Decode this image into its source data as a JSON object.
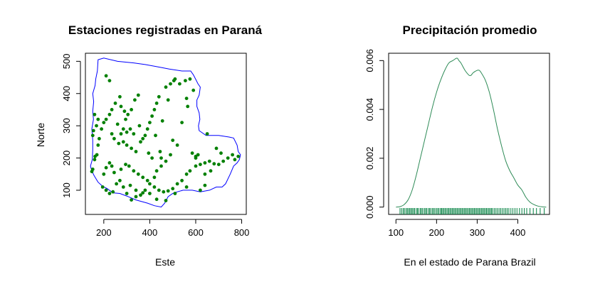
{
  "chart_data": [
    {
      "type": "scatter",
      "title": "Estaciones registradas en Paraná",
      "xlabel": "Este",
      "ylabel": "Norte",
      "xlim": [
        120,
        820
      ],
      "ylim": [
        25,
        525
      ],
      "x_ticks": [
        "200",
        "400",
        "600",
        "800"
      ],
      "y_ticks": [
        "100",
        "200",
        "300",
        "400",
        "500"
      ],
      "colors": {
        "points": "#008000",
        "border": "#0000ff"
      },
      "border_polygon": [
        [
          175,
          505
        ],
        [
          200,
          510
        ],
        [
          260,
          500
        ],
        [
          330,
          495
        ],
        [
          380,
          490
        ],
        [
          420,
          485
        ],
        [
          455,
          480
        ],
        [
          485,
          476
        ],
        [
          540,
          470
        ],
        [
          578,
          470
        ],
        [
          590,
          458
        ],
        [
          610,
          430
        ],
        [
          620,
          420
        ],
        [
          615,
          395
        ],
        [
          605,
          380
        ],
        [
          605,
          360
        ],
        [
          615,
          340
        ],
        [
          618,
          320
        ],
        [
          612,
          300
        ],
        [
          615,
          285
        ],
        [
          645,
          270
        ],
        [
          700,
          270
        ],
        [
          745,
          265
        ],
        [
          765,
          262
        ],
        [
          780,
          240
        ],
        [
          785,
          220
        ],
        [
          795,
          210
        ],
        [
          790,
          195
        ],
        [
          780,
          185
        ],
        [
          765,
          175
        ],
        [
          750,
          150
        ],
        [
          730,
          120
        ],
        [
          715,
          110
        ],
        [
          690,
          110
        ],
        [
          660,
          100
        ],
        [
          620,
          95
        ],
        [
          585,
          100
        ],
        [
          545,
          100
        ],
        [
          520,
          95
        ],
        [
          500,
          90
        ],
        [
          480,
          80
        ],
        [
          465,
          60
        ],
        [
          450,
          48
        ],
        [
          420,
          52
        ],
        [
          390,
          60
        ],
        [
          340,
          70
        ],
        [
          300,
          82
        ],
        [
          270,
          90
        ],
        [
          240,
          92
        ],
        [
          215,
          105
        ],
        [
          195,
          112
        ],
        [
          175,
          125
        ],
        [
          158,
          145
        ],
        [
          148,
          160
        ],
        [
          142,
          175
        ],
        [
          150,
          195
        ],
        [
          152,
          225
        ],
        [
          152,
          255
        ],
        [
          148,
          290
        ],
        [
          155,
          320
        ],
        [
          152,
          345
        ],
        [
          156,
          375
        ],
        [
          152,
          400
        ],
        [
          162,
          425
        ],
        [
          165,
          445
        ],
        [
          172,
          470
        ],
        [
          175,
          505
        ]
      ],
      "points": [
        [
          160,
          335
        ],
        [
          168,
          300
        ],
        [
          175,
          320
        ],
        [
          155,
          285
        ],
        [
          152,
          270
        ],
        [
          162,
          205
        ],
        [
          170,
          210
        ],
        [
          160,
          195
        ],
        [
          148,
          158
        ],
        [
          152,
          165
        ],
        [
          175,
          240
        ],
        [
          180,
          260
        ],
        [
          190,
          290
        ],
        [
          200,
          310
        ],
        [
          210,
          320
        ],
        [
          225,
          335
        ],
        [
          235,
          350
        ],
        [
          250,
          370
        ],
        [
          270,
          390
        ],
        [
          275,
          360
        ],
        [
          290,
          345
        ],
        [
          305,
          335
        ],
        [
          320,
          350
        ],
        [
          335,
          380
        ],
        [
          350,
          395
        ],
        [
          295,
          320
        ],
        [
          300,
          280
        ],
        [
          315,
          290
        ],
        [
          260,
          305
        ],
        [
          275,
          275
        ],
        [
          285,
          250
        ],
        [
          300,
          240
        ],
        [
          320,
          230
        ],
        [
          340,
          220
        ],
        [
          360,
          250
        ],
        [
          380,
          270
        ],
        [
          390,
          290
        ],
        [
          400,
          310
        ],
        [
          410,
          330
        ],
        [
          420,
          350
        ],
        [
          430,
          370
        ],
        [
          440,
          390
        ],
        [
          470,
          420
        ],
        [
          490,
          430
        ],
        [
          505,
          440
        ],
        [
          530,
          430
        ],
        [
          555,
          440
        ],
        [
          575,
          445
        ],
        [
          590,
          410
        ],
        [
          565,
          360
        ],
        [
          540,
          310
        ],
        [
          520,
          240
        ],
        [
          490,
          210
        ],
        [
          470,
          190
        ],
        [
          450,
          175
        ],
        [
          430,
          160
        ],
        [
          420,
          140
        ],
        [
          400,
          120
        ],
        [
          380,
          100
        ],
        [
          360,
          85
        ],
        [
          340,
          80
        ],
        [
          320,
          70
        ],
        [
          300,
          90
        ],
        [
          285,
          110
        ],
        [
          270,
          130
        ],
        [
          245,
          155
        ],
        [
          235,
          175
        ],
        [
          225,
          185
        ],
        [
          210,
          170
        ],
        [
          200,
          150
        ],
        [
          195,
          110
        ],
        [
          210,
          100
        ],
        [
          225,
          90
        ],
        [
          240,
          95
        ],
        [
          255,
          120
        ],
        [
          275,
          165
        ],
        [
          295,
          180
        ],
        [
          310,
          175
        ],
        [
          330,
          160
        ],
        [
          350,
          150
        ],
        [
          370,
          140
        ],
        [
          390,
          130
        ],
        [
          420,
          110
        ],
        [
          440,
          100
        ],
        [
          460,
          95
        ],
        [
          480,
          98
        ],
        [
          500,
          105
        ],
        [
          520,
          120
        ],
        [
          540,
          130
        ],
        [
          560,
          150
        ],
        [
          575,
          160
        ],
        [
          600,
          175
        ],
        [
          620,
          180
        ],
        [
          640,
          185
        ],
        [
          660,
          190
        ],
        [
          680,
          182
        ],
        [
          700,
          180
        ],
        [
          720,
          190
        ],
        [
          740,
          200
        ],
        [
          760,
          210
        ],
        [
          770,
          195
        ],
        [
          785,
          205
        ],
        [
          690,
          230
        ],
        [
          710,
          215
        ],
        [
          650,
          275
        ],
        [
          610,
          210
        ],
        [
          585,
          215
        ],
        [
          600,
          200
        ],
        [
          640,
          115
        ],
        [
          620,
          100
        ],
        [
          560,
          110
        ],
        [
          510,
          90
        ],
        [
          470,
          68
        ],
        [
          430,
          72
        ],
        [
          400,
          90
        ],
        [
          370,
          92
        ],
        [
          340,
          100
        ],
        [
          315,
          115
        ],
        [
          225,
          440
        ],
        [
          210,
          455
        ],
        [
          235,
          275
        ],
        [
          245,
          260
        ],
        [
          265,
          245
        ],
        [
          285,
          290
        ],
        [
          330,
          275
        ],
        [
          355,
          300
        ],
        [
          395,
          215
        ],
        [
          370,
          260
        ],
        [
          410,
          200
        ],
        [
          450,
          200
        ],
        [
          425,
          270
        ],
        [
          445,
          220
        ],
        [
          500,
          255
        ],
        [
          455,
          315
        ],
        [
          480,
          380
        ],
        [
          510,
          445
        ],
        [
          560,
          385
        ],
        [
          600,
          205
        ],
        [
          640,
          150
        ],
        [
          665,
          160
        ]
      ]
    },
    {
      "type": "area",
      "title": "Precipitación promedio",
      "xlabel": "En el estado de Parana Brazil",
      "ylabel": "",
      "xlim": [
        82,
        478
      ],
      "ylim": [
        -0.0003,
        0.0063
      ],
      "x_ticks": [
        "100",
        "200",
        "300",
        "400"
      ],
      "y_ticks": [
        "0.000",
        "0.002",
        "0.004",
        "0.006"
      ],
      "colors": {
        "curve": "#2e8b57",
        "rug": "#008040"
      },
      "density": {
        "x": [
          100,
          110,
          120,
          130,
          140,
          150,
          160,
          170,
          180,
          190,
          200,
          210,
          220,
          230,
          240,
          250,
          255,
          260,
          270,
          280,
          285,
          290,
          300,
          305,
          310,
          320,
          330,
          340,
          350,
          360,
          370,
          380,
          390,
          400,
          410,
          420,
          430,
          440,
          450,
          460,
          470
        ],
        "y": [
          0.0,
          2e-05,
          0.0001,
          0.0003,
          0.0007,
          0.0013,
          0.002,
          0.0027,
          0.0034,
          0.0041,
          0.0047,
          0.0052,
          0.0056,
          0.0059,
          0.006,
          0.0061,
          0.006,
          0.0059,
          0.0056,
          0.0054,
          0.0054,
          0.0055,
          0.0056,
          0.0056,
          0.0055,
          0.0052,
          0.0047,
          0.004,
          0.0032,
          0.0025,
          0.0019,
          0.0015,
          0.0012,
          0.0009,
          0.0007,
          0.0004,
          0.0002,
          0.0001,
          4e-05,
          1e-05,
          0.0
        ]
      },
      "rug": [
        110,
        114,
        118,
        121,
        125,
        128,
        131,
        134,
        137,
        140,
        143,
        146,
        150,
        153,
        156,
        160,
        163,
        166,
        170,
        173,
        176,
        180,
        183,
        186,
        190,
        193,
        196,
        200,
        203,
        206,
        210,
        212,
        215,
        218,
        221,
        224,
        227,
        230,
        233,
        236,
        239,
        242,
        245,
        248,
        251,
        254,
        257,
        260,
        263,
        266,
        269,
        272,
        275,
        278,
        281,
        284,
        287,
        290,
        293,
        296,
        299,
        302,
        305,
        308,
        311,
        314,
        317,
        320,
        323,
        326,
        329,
        332,
        335,
        338,
        342,
        346,
        350,
        354,
        358,
        362,
        366,
        370,
        374,
        378,
        383,
        388,
        393,
        398,
        404,
        410,
        416,
        422,
        430,
        438,
        446,
        455,
        465
      ]
    }
  ]
}
